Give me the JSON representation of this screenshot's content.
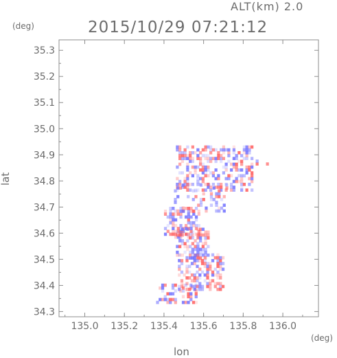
{
  "header": {
    "alt_label": "ALT(km)  2.0",
    "timestamp": "2015/10/29 07:21:12"
  },
  "chart_data": {
    "type": "heatmap",
    "title": "2015/10/29 07:21:12",
    "subtitle": "ALT(km)  2.0",
    "xlabel": "lon",
    "ylabel": "lat",
    "x_unit": "(deg)",
    "y_unit": "(deg)",
    "xlim": [
      134.87,
      136.18
    ],
    "ylim": [
      34.28,
      35.34
    ],
    "x_ticks": [
      135.0,
      135.2,
      135.4,
      135.6,
      135.8,
      136.0
    ],
    "x_tick_labels": [
      "135.0",
      "135.2",
      "135.4",
      "135.6",
      "135.8",
      "136.0"
    ],
    "y_ticks": [
      34.3,
      34.4,
      34.5,
      34.6,
      34.7,
      34.8,
      34.9,
      35.0,
      35.1,
      35.2,
      35.3
    ],
    "y_tick_labels": [
      "34.3",
      "34.4",
      "34.5",
      "34.6",
      "34.7",
      "34.8",
      "34.9",
      "35.0",
      "35.1",
      "35.2",
      "35.3"
    ],
    "grid": false,
    "colors": {
      "positive": "#ff5a5a",
      "negative": "#6f6fff",
      "frame": "#8c8c8c"
    },
    "regions": [
      {
        "lon": [
          135.46,
          135.85
        ],
        "lat": [
          34.76,
          34.93
        ],
        "density": 0.45
      },
      {
        "lon": [
          135.45,
          135.72
        ],
        "lat": [
          34.68,
          34.78
        ],
        "density": 0.3
      },
      {
        "lon": [
          135.4,
          135.58
        ],
        "lat": [
          34.58,
          34.7
        ],
        "density": 0.55
      },
      {
        "lon": [
          135.46,
          135.62
        ],
        "lat": [
          34.5,
          34.62
        ],
        "density": 0.5
      },
      {
        "lon": [
          135.47,
          135.7
        ],
        "lat": [
          34.38,
          34.52
        ],
        "density": 0.55
      },
      {
        "lon": [
          135.36,
          135.56
        ],
        "lat": [
          34.33,
          34.4
        ],
        "density": 0.4
      },
      {
        "lon": [
          135.85,
          135.92
        ],
        "lat": [
          34.86,
          34.88
        ],
        "density": 0.3
      }
    ]
  }
}
